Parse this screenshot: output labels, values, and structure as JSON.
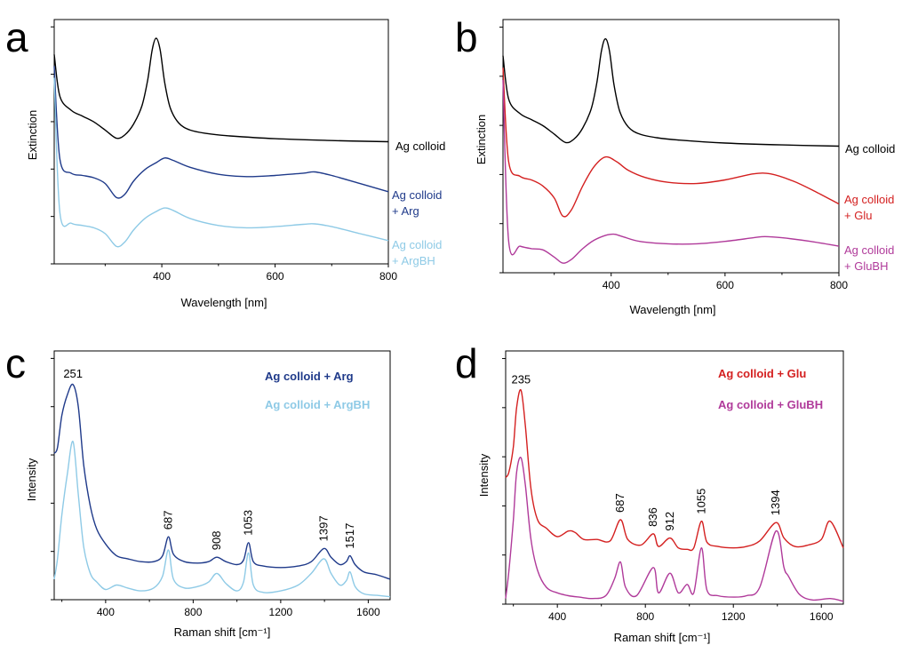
{
  "colors": {
    "black": "#000000",
    "navy": "#1f3a8a",
    "lightblue": "#8ecae6",
    "red": "#d42020",
    "magenta": "#b03a9a"
  },
  "chart_data": [
    {
      "panel": "a",
      "type": "line",
      "xlabel": "Wavelength [nm]",
      "ylabel": "Extinction",
      "xlim": [
        210,
        800
      ],
      "xticks": [
        "400",
        "600",
        "800"
      ],
      "xtick_values": [
        400,
        600,
        800
      ],
      "series": [
        {
          "name": "Ag colloid",
          "label_lines": [
            "Ag colloid"
          ],
          "color": "#000000",
          "x": [
            210,
            220,
            240,
            260,
            280,
            300,
            320,
            335,
            350,
            365,
            375,
            383,
            390,
            397,
            405,
            415,
            430,
            450,
            480,
            520,
            600,
            700,
            800
          ],
          "y": [
            9.0,
            7.2,
            6.6,
            6.35,
            6.1,
            5.75,
            5.4,
            5.55,
            6.0,
            6.8,
            7.9,
            9.2,
            9.7,
            9.2,
            7.8,
            6.7,
            6.05,
            5.75,
            5.6,
            5.5,
            5.38,
            5.3,
            5.25
          ]
        },
        {
          "name": "Ag colloid + Arg",
          "label_lines": [
            "Ag colloid",
            "+ Arg"
          ],
          "color": "#1f3a8a",
          "x": [
            210,
            220,
            240,
            260,
            280,
            300,
            320,
            335,
            350,
            370,
            390,
            405,
            420,
            450,
            500,
            550,
            600,
            650,
            670,
            700,
            750,
            800
          ],
          "y": [
            8.5,
            4.5,
            3.9,
            3.8,
            3.7,
            3.45,
            2.85,
            3.0,
            3.55,
            4.05,
            4.35,
            4.55,
            4.45,
            4.15,
            3.85,
            3.75,
            3.8,
            3.9,
            3.95,
            3.8,
            3.45,
            3.1
          ]
        },
        {
          "name": "Ag colloid + ArgBH",
          "label_lines": [
            "Ag colloid",
            "+ ArgBH"
          ],
          "color": "#8ecae6",
          "x": [
            210,
            220,
            240,
            260,
            280,
            300,
            320,
            335,
            350,
            370,
            390,
            405,
            420,
            450,
            500,
            550,
            600,
            650,
            670,
            700,
            750,
            800
          ],
          "y": [
            8.0,
            2.2,
            1.75,
            1.65,
            1.55,
            1.3,
            0.75,
            0.95,
            1.45,
            1.95,
            2.25,
            2.4,
            2.3,
            1.95,
            1.65,
            1.55,
            1.6,
            1.7,
            1.72,
            1.6,
            1.3,
            1.0
          ]
        }
      ]
    },
    {
      "panel": "b",
      "type": "line",
      "xlabel": "Wavelength [nm]",
      "ylabel": "Extinction",
      "xlim": [
        210,
        800
      ],
      "xticks": [
        "400",
        "600",
        "800"
      ],
      "xtick_values": [
        400,
        600,
        800
      ],
      "series": [
        {
          "name": "Ag colloid",
          "label_lines": [
            "Ag colloid"
          ],
          "color": "#000000",
          "x": [
            210,
            220,
            240,
            260,
            280,
            300,
            320,
            335,
            350,
            365,
            375,
            383,
            390,
            397,
            405,
            415,
            430,
            450,
            480,
            520,
            600,
            700,
            800
          ],
          "y": [
            9.0,
            7.2,
            6.6,
            6.35,
            6.1,
            5.75,
            5.4,
            5.55,
            6.0,
            6.8,
            7.9,
            9.2,
            9.7,
            9.2,
            7.8,
            6.7,
            6.05,
            5.75,
            5.6,
            5.5,
            5.38,
            5.3,
            5.25
          ]
        },
        {
          "name": "Ag colloid + Glu",
          "label_lines": [
            "Ag colloid",
            "+ Glu"
          ],
          "color": "#d42020",
          "x": [
            210,
            220,
            240,
            260,
            280,
            300,
            315,
            330,
            350,
            370,
            390,
            410,
            430,
            460,
            500,
            550,
            600,
            650,
            680,
            720,
            760,
            800
          ],
          "y": [
            8.5,
            4.6,
            4.0,
            3.85,
            3.6,
            3.1,
            2.35,
            2.6,
            3.6,
            4.4,
            4.8,
            4.6,
            4.25,
            3.95,
            3.75,
            3.7,
            3.85,
            4.1,
            4.1,
            3.8,
            3.35,
            2.85
          ]
        },
        {
          "name": "Ag colloid + GluBH",
          "label_lines": [
            "Ag colloid",
            "+ GluBH"
          ],
          "color": "#b03a9a",
          "x": [
            210,
            220,
            240,
            260,
            280,
            300,
            315,
            330,
            350,
            370,
            390,
            405,
            420,
            450,
            500,
            550,
            600,
            650,
            670,
            700,
            750,
            800
          ],
          "y": [
            8.0,
            1.3,
            1.1,
            1.0,
            0.95,
            0.65,
            0.4,
            0.55,
            1.0,
            1.35,
            1.55,
            1.6,
            1.5,
            1.3,
            1.2,
            1.2,
            1.3,
            1.45,
            1.5,
            1.45,
            1.3,
            1.1
          ]
        }
      ]
    },
    {
      "panel": "c",
      "type": "line",
      "xlabel": "Raman shift [cm⁻¹]",
      "ylabel": "Intensity",
      "xlim": [
        165,
        1700
      ],
      "xticks": [
        "400",
        "800",
        "1200",
        "1600"
      ],
      "xtick_values": [
        400,
        800,
        1200,
        1600
      ],
      "peak_labels": [
        {
          "label": "251",
          "x": 251
        },
        {
          "label": "687",
          "x": 687
        },
        {
          "label": "908",
          "x": 908
        },
        {
          "label": "1053",
          "x": 1053
        },
        {
          "label": "1397",
          "x": 1397
        },
        {
          "label": "1517",
          "x": 1517
        }
      ],
      "series": [
        {
          "name": "Ag colloid + Arg",
          "color": "#1f3a8a",
          "x": [
            165,
            180,
            200,
            225,
            251,
            275,
            300,
            330,
            360,
            400,
            450,
            500,
            560,
            620,
            660,
            687,
            710,
            760,
            820,
            870,
            908,
            950,
            1000,
            1030,
            1053,
            1075,
            1120,
            1200,
            1280,
            1340,
            1397,
            1430,
            1470,
            1500,
            1517,
            1540,
            1580,
            1640,
            1700
          ],
          "y": [
            5.0,
            5.2,
            6.3,
            7.0,
            7.35,
            6.6,
            4.6,
            3.2,
            2.4,
            1.9,
            1.5,
            1.4,
            1.3,
            1.3,
            1.5,
            2.15,
            1.55,
            1.3,
            1.25,
            1.3,
            1.45,
            1.3,
            1.2,
            1.35,
            1.95,
            1.3,
            1.15,
            1.1,
            1.15,
            1.3,
            1.75,
            1.45,
            1.2,
            1.3,
            1.5,
            1.2,
            0.95,
            0.85,
            0.7
          ]
        },
        {
          "name": "Ag colloid + ArgBH",
          "color": "#8ecae6",
          "x": [
            165,
            180,
            200,
            225,
            251,
            275,
            300,
            330,
            360,
            400,
            450,
            500,
            560,
            620,
            660,
            687,
            710,
            760,
            820,
            870,
            908,
            950,
            1000,
            1030,
            1053,
            1075,
            1120,
            1200,
            1280,
            1340,
            1397,
            1430,
            1470,
            1500,
            1517,
            1540,
            1580,
            1640,
            1700
          ],
          "y": [
            0.7,
            1.4,
            2.9,
            4.3,
            5.4,
            3.6,
            1.8,
            0.9,
            0.6,
            0.35,
            0.5,
            0.4,
            0.3,
            0.4,
            0.8,
            1.7,
            0.7,
            0.4,
            0.45,
            0.6,
            0.9,
            0.55,
            0.3,
            0.6,
            1.6,
            0.5,
            0.25,
            0.3,
            0.5,
            0.9,
            1.4,
            0.9,
            0.5,
            0.65,
            0.95,
            0.45,
            0.2,
            0.15,
            0.1
          ]
        }
      ]
    },
    {
      "panel": "d",
      "type": "line",
      "xlabel": "Raman shift [cm⁻¹]",
      "ylabel": "Intensity",
      "xlim": [
        165,
        1700
      ],
      "xticks": [
        "400",
        "800",
        "1200",
        "1600"
      ],
      "xtick_values": [
        400,
        800,
        1200,
        1600
      ],
      "peak_labels": [
        {
          "label": "235",
          "x": 235
        },
        {
          "label": "687",
          "x": 687
        },
        {
          "label": "836",
          "x": 836
        },
        {
          "label": "912",
          "x": 912
        },
        {
          "label": "1055",
          "x": 1055
        },
        {
          "label": "1394",
          "x": 1394
        }
      ],
      "series": [
        {
          "name": "Ag colloid + Glu",
          "color": "#d42020",
          "x": [
            165,
            180,
            200,
            215,
            235,
            255,
            280,
            310,
            350,
            400,
            450,
            480,
            520,
            580,
            640,
            687,
            720,
            780,
            836,
            860,
            912,
            950,
            990,
            1020,
            1055,
            1080,
            1130,
            1200,
            1260,
            1320,
            1394,
            1430,
            1480,
            1540,
            1600,
            1640,
            1700
          ],
          "y": [
            4.5,
            4.7,
            5.6,
            7.0,
            7.6,
            6.3,
            4.1,
            3.0,
            2.7,
            2.4,
            2.6,
            2.55,
            2.3,
            2.3,
            2.25,
            3.0,
            2.3,
            2.1,
            2.5,
            2.05,
            2.35,
            2.0,
            1.95,
            2.0,
            2.95,
            2.2,
            2.05,
            2.0,
            2.05,
            2.25,
            2.9,
            2.35,
            2.05,
            2.1,
            2.3,
            2.95,
            2.0
          ]
        },
        {
          "name": "Ag colloid + GluBH",
          "color": "#b03a9a",
          "x": [
            165,
            180,
            200,
            215,
            235,
            255,
            280,
            310,
            350,
            400,
            450,
            500,
            560,
            620,
            660,
            687,
            710,
            760,
            836,
            860,
            912,
            950,
            990,
            1020,
            1055,
            1080,
            1130,
            1200,
            1260,
            1320,
            1394,
            1430,
            1450,
            1500,
            1560,
            1640,
            1700
          ],
          "y": [
            0.2,
            1.2,
            3.0,
            4.7,
            5.2,
            4.2,
            2.3,
            1.2,
            0.6,
            0.4,
            0.3,
            0.25,
            0.2,
            0.3,
            0.9,
            1.5,
            0.6,
            0.3,
            1.3,
            0.4,
            1.1,
            0.4,
            0.7,
            0.4,
            2.0,
            0.5,
            0.3,
            0.25,
            0.3,
            0.6,
            2.6,
            1.3,
            1.0,
            0.35,
            0.15,
            0.2,
            0.1
          ]
        }
      ]
    }
  ]
}
